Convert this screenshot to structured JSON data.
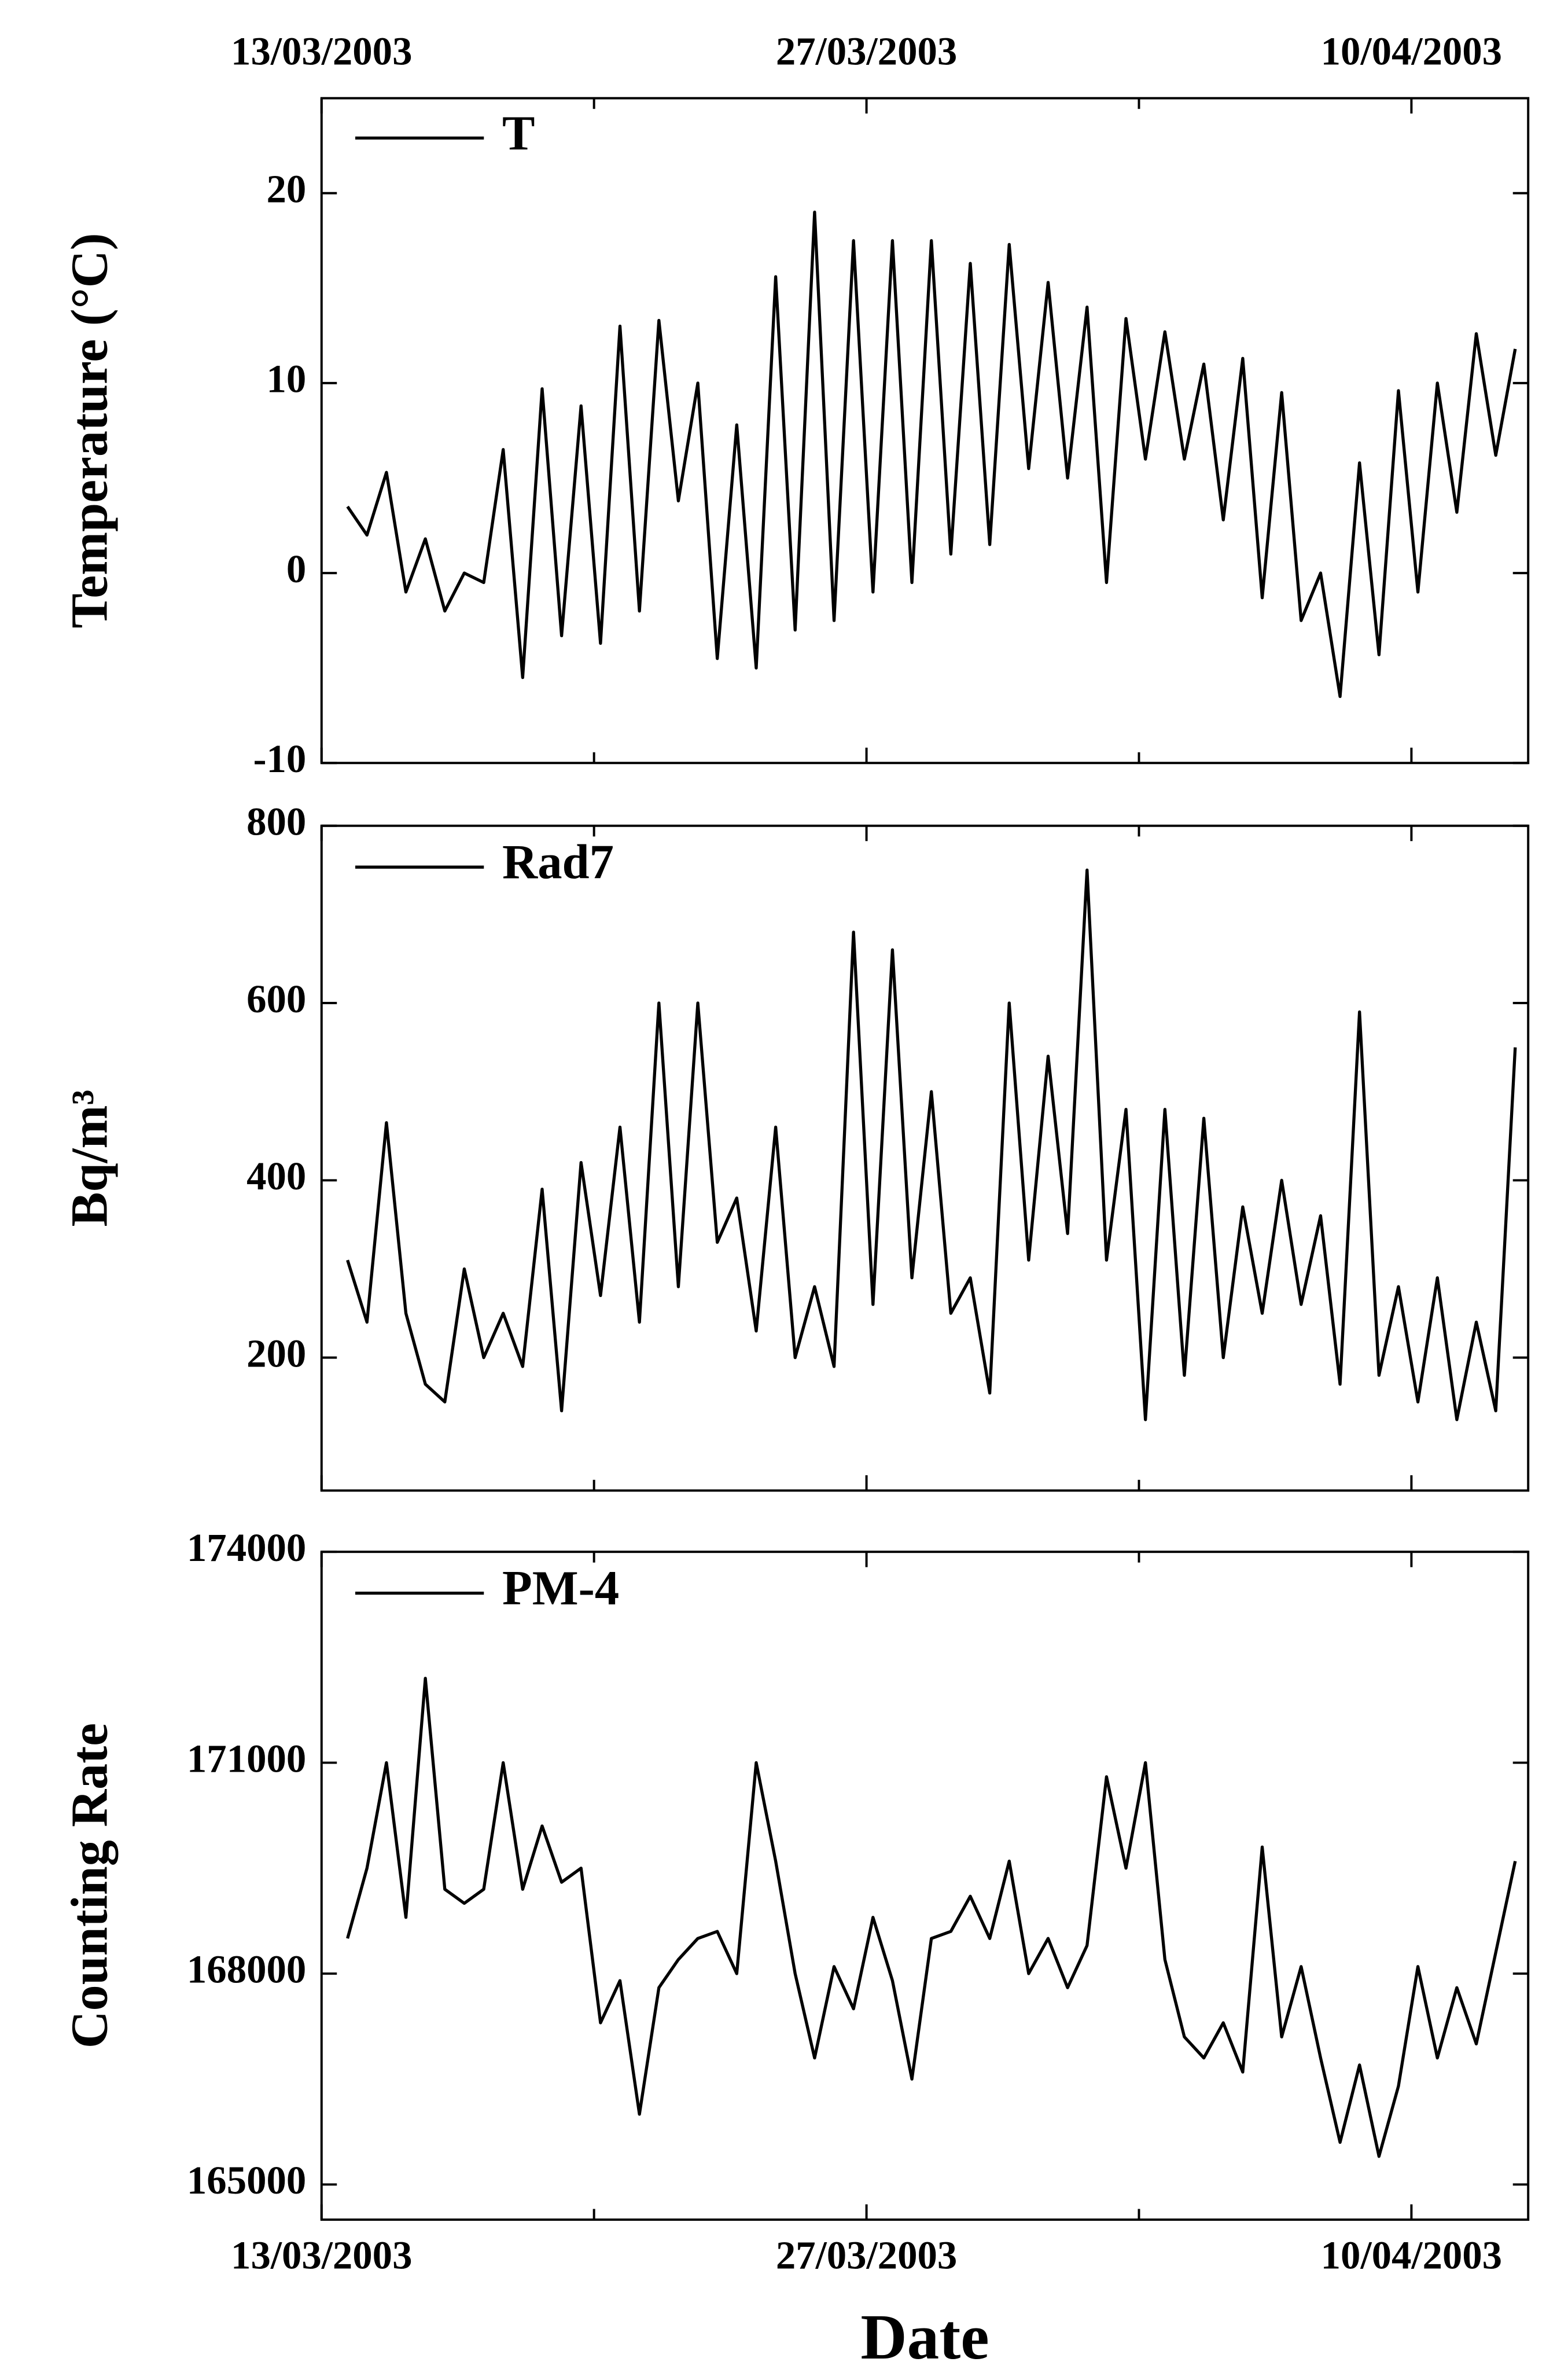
{
  "chart_data": [
    {
      "type": "line",
      "ylabel": "Temperature (°C)",
      "x": [
        "2003-03-13T16:00",
        "2003-03-14T04:00",
        "2003-03-14T16:00",
        "2003-03-15T04:00",
        "2003-03-15T16:00",
        "2003-03-16T04:00",
        "2003-03-16T16:00",
        "2003-03-17T04:00",
        "2003-03-17T16:00",
        "2003-03-18T04:00",
        "2003-03-18T16:00",
        "2003-03-19T04:00",
        "2003-03-19T16:00",
        "2003-03-20T04:00",
        "2003-03-20T16:00",
        "2003-03-21T04:00",
        "2003-03-21T16:00",
        "2003-03-22T04:00",
        "2003-03-22T16:00",
        "2003-03-23T04:00",
        "2003-03-23T16:00",
        "2003-03-24T04:00",
        "2003-03-24T16:00",
        "2003-03-25T04:00",
        "2003-03-25T16:00",
        "2003-03-26T04:00",
        "2003-03-26T16:00",
        "2003-03-27T04:00",
        "2003-03-27T16:00",
        "2003-03-28T04:00",
        "2003-03-28T16:00",
        "2003-03-29T04:00",
        "2003-03-29T16:00",
        "2003-03-30T04:00",
        "2003-03-30T16:00",
        "2003-03-31T04:00",
        "2003-03-31T16:00",
        "2003-04-01T04:00",
        "2003-04-01T16:00",
        "2003-04-02T04:00",
        "2003-04-02T16:00",
        "2003-04-03T04:00",
        "2003-04-03T16:00",
        "2003-04-04T04:00",
        "2003-04-04T16:00",
        "2003-04-05T04:00",
        "2003-04-05T16:00",
        "2003-04-06T04:00",
        "2003-04-06T16:00",
        "2003-04-07T04:00",
        "2003-04-07T16:00",
        "2003-04-08T04:00",
        "2003-04-08T16:00",
        "2003-04-09T04:00",
        "2003-04-09T16:00",
        "2003-04-10T04:00",
        "2003-04-10T16:00",
        "2003-04-11T04:00",
        "2003-04-11T16:00",
        "2003-04-12T04:00",
        "2003-04-12T16:00"
      ],
      "series": [
        {
          "name": "T",
          "color": "#000000",
          "values": [
            3.5,
            2,
            5.3,
            -1,
            1.8,
            -2,
            0,
            -0.5,
            6.5,
            -5.5,
            9.7,
            -3.3,
            8.8,
            -3.7,
            13,
            -2,
            13.3,
            3.8,
            10,
            -4.5,
            7.8,
            -5,
            15.6,
            -3,
            19,
            -2.5,
            17.5,
            -1,
            17.5,
            -0.5,
            17.5,
            1,
            16.3,
            1.5,
            17.3,
            5.5,
            15.3,
            5,
            14,
            -0.5,
            13.4,
            6,
            12.7,
            6,
            11,
            2.8,
            11.3,
            -1.3,
            9.5,
            -2.5,
            0,
            -6.5,
            5.8,
            -4.3,
            9.6,
            -1,
            10,
            3.2,
            12.6,
            6.2,
            11.8
          ]
        }
      ],
      "xlim": [
        "2003-03-13T00:00",
        "2003-04-13T00:00"
      ],
      "xticks": [
        {
          "value": "2003-03-13T00:00",
          "label": "13/03/2003"
        },
        {
          "value": "2003-03-27T00:00",
          "label": "27/03/2003"
        },
        {
          "value": "2003-04-10T00:00",
          "label": "10/04/2003"
        }
      ],
      "x_minor_ticks": [
        "2003-03-20T00:00",
        "2003-04-03T00:00"
      ],
      "ylim": [
        -10,
        25
      ],
      "yticks": [
        -10,
        0,
        10,
        20
      ]
    },
    {
      "type": "line",
      "ylabel": "Bq/m³",
      "x": [
        "2003-03-13T16:00",
        "2003-03-14T04:00",
        "2003-03-14T16:00",
        "2003-03-15T04:00",
        "2003-03-15T16:00",
        "2003-03-16T04:00",
        "2003-03-16T16:00",
        "2003-03-17T04:00",
        "2003-03-17T16:00",
        "2003-03-18T04:00",
        "2003-03-18T16:00",
        "2003-03-19T04:00",
        "2003-03-19T16:00",
        "2003-03-20T04:00",
        "2003-03-20T16:00",
        "2003-03-21T04:00",
        "2003-03-21T16:00",
        "2003-03-22T04:00",
        "2003-03-22T16:00",
        "2003-03-23T04:00",
        "2003-03-23T16:00",
        "2003-03-24T04:00",
        "2003-03-24T16:00",
        "2003-03-25T04:00",
        "2003-03-25T16:00",
        "2003-03-26T04:00",
        "2003-03-26T16:00",
        "2003-03-27T04:00",
        "2003-03-27T16:00",
        "2003-03-28T04:00",
        "2003-03-28T16:00",
        "2003-03-29T04:00",
        "2003-03-29T16:00",
        "2003-03-30T04:00",
        "2003-03-30T16:00",
        "2003-03-31T04:00",
        "2003-03-31T16:00",
        "2003-04-01T04:00",
        "2003-04-01T16:00",
        "2003-04-02T04:00",
        "2003-04-02T16:00",
        "2003-04-03T04:00",
        "2003-04-03T16:00",
        "2003-04-04T04:00",
        "2003-04-04T16:00",
        "2003-04-05T04:00",
        "2003-04-05T16:00",
        "2003-04-06T04:00",
        "2003-04-06T16:00",
        "2003-04-07T04:00",
        "2003-04-07T16:00",
        "2003-04-08T04:00",
        "2003-04-08T16:00",
        "2003-04-09T04:00",
        "2003-04-09T16:00",
        "2003-04-10T04:00",
        "2003-04-10T16:00",
        "2003-04-11T04:00",
        "2003-04-11T16:00",
        "2003-04-12T04:00",
        "2003-04-12T16:00"
      ],
      "series": [
        {
          "name": "Rad7",
          "color": "#000000",
          "values": [
            310,
            240,
            465,
            250,
            170,
            150,
            300,
            200,
            250,
            190,
            390,
            140,
            420,
            270,
            460,
            240,
            600,
            280,
            600,
            330,
            380,
            230,
            460,
            200,
            280,
            190,
            680,
            260,
            660,
            290,
            500,
            250,
            290,
            160,
            600,
            310,
            540,
            340,
            750,
            310,
            480,
            130,
            480,
            180,
            470,
            200,
            370,
            250,
            400,
            260,
            360,
            170,
            590,
            180,
            280,
            150,
            290,
            130,
            240,
            140,
            550
          ]
        }
      ],
      "xlim": [
        "2003-03-13T00:00",
        "2003-04-13T00:00"
      ],
      "xticks": [
        {
          "value": "2003-03-13T00:00",
          "label": "13/03/2003"
        },
        {
          "value": "2003-03-27T00:00",
          "label": "27/03/2003"
        },
        {
          "value": "2003-04-10T00:00",
          "label": "10/04/2003"
        }
      ],
      "x_minor_ticks": [
        "2003-03-20T00:00",
        "2003-04-03T00:00"
      ],
      "ylim": [
        50,
        800
      ],
      "yticks": [
        200,
        400,
        600,
        800
      ]
    },
    {
      "type": "line",
      "ylabel": "Counting Rate",
      "xlabel": "Date",
      "x": [
        "2003-03-13T16:00",
        "2003-03-14T04:00",
        "2003-03-14T16:00",
        "2003-03-15T04:00",
        "2003-03-15T16:00",
        "2003-03-16T04:00",
        "2003-03-16T16:00",
        "2003-03-17T04:00",
        "2003-03-17T16:00",
        "2003-03-18T04:00",
        "2003-03-18T16:00",
        "2003-03-19T04:00",
        "2003-03-19T16:00",
        "2003-03-20T04:00",
        "2003-03-20T16:00",
        "2003-03-21T04:00",
        "2003-03-21T16:00",
        "2003-03-22T04:00",
        "2003-03-22T16:00",
        "2003-03-23T04:00",
        "2003-03-23T16:00",
        "2003-03-24T04:00",
        "2003-03-24T16:00",
        "2003-03-25T04:00",
        "2003-03-25T16:00",
        "2003-03-26T04:00",
        "2003-03-26T16:00",
        "2003-03-27T04:00",
        "2003-03-27T16:00",
        "2003-03-28T04:00",
        "2003-03-28T16:00",
        "2003-03-29T04:00",
        "2003-03-29T16:00",
        "2003-03-30T04:00",
        "2003-03-30T16:00",
        "2003-03-31T04:00",
        "2003-03-31T16:00",
        "2003-04-01T04:00",
        "2003-04-01T16:00",
        "2003-04-02T04:00",
        "2003-04-02T16:00",
        "2003-04-03T04:00",
        "2003-04-03T16:00",
        "2003-04-04T04:00",
        "2003-04-04T16:00",
        "2003-04-05T04:00",
        "2003-04-05T16:00",
        "2003-04-06T04:00",
        "2003-04-06T16:00",
        "2003-04-07T04:00",
        "2003-04-07T16:00",
        "2003-04-08T04:00",
        "2003-04-08T16:00",
        "2003-04-09T04:00",
        "2003-04-09T16:00",
        "2003-04-10T04:00",
        "2003-04-10T16:00",
        "2003-04-11T04:00",
        "2003-04-11T16:00",
        "2003-04-12T04:00",
        "2003-04-12T16:00"
      ],
      "series": [
        {
          "name": "PM-4",
          "color": "#000000",
          "values": [
            168500,
            169500,
            171000,
            168800,
            172200,
            169200,
            169000,
            169200,
            171000,
            169200,
            170100,
            169300,
            169500,
            167300,
            167900,
            166000,
            167800,
            168200,
            168500,
            168600,
            168000,
            171000,
            169600,
            168000,
            166800,
            168100,
            167500,
            168800,
            167900,
            166500,
            168500,
            168600,
            169100,
            168500,
            169600,
            168000,
            168500,
            167800,
            168400,
            170800,
            169500,
            171000,
            168200,
            167100,
            166800,
            167300,
            166600,
            169800,
            167100,
            168100,
            166800,
            165600,
            166700,
            165400,
            166400,
            168100,
            166800,
            167800,
            167000,
            168300,
            169600
          ]
        }
      ],
      "xlim": [
        "2003-03-13T00:00",
        "2003-04-13T00:00"
      ],
      "xticks": [
        {
          "value": "2003-03-13T00:00",
          "label": "13/03/2003"
        },
        {
          "value": "2003-03-27T00:00",
          "label": "27/03/2003"
        },
        {
          "value": "2003-04-10T00:00",
          "label": "10/04/2003"
        }
      ],
      "x_minor_ticks": [
        "2003-03-20T00:00",
        "2003-04-03T00:00"
      ],
      "ylim": [
        164500,
        174000
      ],
      "yticks": [
        165000,
        168000,
        171000,
        174000
      ]
    }
  ]
}
